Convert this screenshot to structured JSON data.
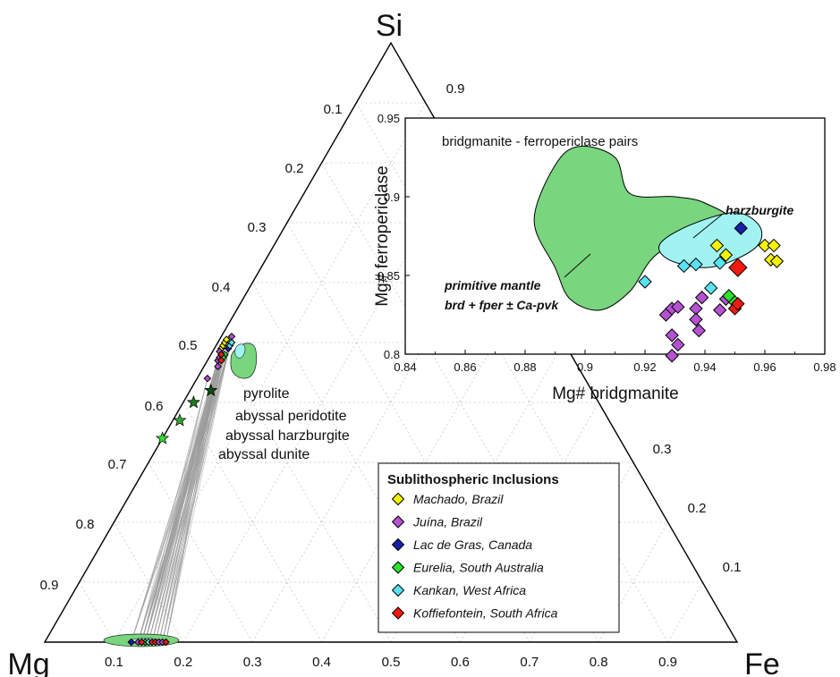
{
  "chart_data": [
    {
      "type": "scatter",
      "subtype": "ternary",
      "vertices": {
        "top": "Si",
        "left": "Mg",
        "right": "Fe"
      },
      "ticks": {
        "base": [
          "0.1",
          "0.2",
          "0.3",
          "0.4",
          "0.5",
          "0.6",
          "0.7",
          "0.8",
          "0.9"
        ],
        "left_edge": [
          "0.1",
          "0.2",
          "0.3",
          "0.4",
          "0.5",
          "0.6",
          "0.7",
          "0.8",
          "0.9"
        ],
        "right_edge": [
          "0.9",
          "0.3",
          "0.2",
          "0.1"
        ]
      },
      "grid": true,
      "references": [
        {
          "name": "pyrolite",
          "mg": 0.55,
          "si": 0.42,
          "color": "#0b4d14"
        },
        {
          "name": "abyssal peridotite",
          "mg": 0.585,
          "si": 0.4,
          "color": "#1f7a22"
        },
        {
          "name": "abyssal harzburgite",
          "mg": 0.62,
          "si": 0.37,
          "color": "#35a530"
        },
        {
          "name": "abyssal dunite",
          "mg": 0.66,
          "si": 0.34,
          "color": "#33dd2c"
        }
      ],
      "bridgmanite_points": [
        {
          "group": 0,
          "mg": 0.5,
          "si": 0.49
        },
        {
          "group": 0,
          "mg": 0.495,
          "si": 0.495
        },
        {
          "group": 0,
          "mg": 0.49,
          "si": 0.5
        },
        {
          "group": 0,
          "mg": 0.485,
          "si": 0.505
        },
        {
          "group": 1,
          "mg": 0.515,
          "si": 0.47
        },
        {
          "group": 1,
          "mg": 0.51,
          "si": 0.475
        },
        {
          "group": 1,
          "mg": 0.505,
          "si": 0.485
        },
        {
          "group": 1,
          "mg": 0.475,
          "si": 0.51
        },
        {
          "group": 1,
          "mg": 0.52,
          "si": 0.46
        },
        {
          "group": 1,
          "mg": 0.545,
          "si": 0.44
        },
        {
          "group": 2,
          "mg": 0.49,
          "si": 0.49
        },
        {
          "group": 3,
          "mg": 0.5,
          "si": 0.48
        },
        {
          "group": 3,
          "mg": 0.505,
          "si": 0.475
        },
        {
          "group": 4,
          "mg": 0.485,
          "si": 0.495
        },
        {
          "group": 4,
          "mg": 0.48,
          "si": 0.5
        },
        {
          "group": 5,
          "mg": 0.505,
          "si": 0.48
        },
        {
          "group": 5,
          "mg": 0.51,
          "si": 0.47
        }
      ],
      "ferropericlase_points": [
        {
          "group": 2,
          "mg": 0.875,
          "si": 0
        },
        {
          "group": 1,
          "mg": 0.865,
          "si": 0
        },
        {
          "group": 1,
          "mg": 0.855,
          "si": 0
        },
        {
          "group": 0,
          "mg": 0.86,
          "si": 0
        },
        {
          "group": 3,
          "mg": 0.855,
          "si": 0
        },
        {
          "group": 4,
          "mg": 0.85,
          "si": 0
        },
        {
          "group": 5,
          "mg": 0.86,
          "si": 0
        },
        {
          "group": 5,
          "mg": 0.845,
          "si": 0
        },
        {
          "group": 5,
          "mg": 0.84,
          "si": 0
        },
        {
          "group": 1,
          "mg": 0.835,
          "si": 0
        },
        {
          "group": 1,
          "mg": 0.83,
          "si": 0
        },
        {
          "group": 5,
          "mg": 0.825,
          "si": 0
        }
      ]
    },
    {
      "type": "scatter",
      "title": "bridgmanite - ferropericlase pairs",
      "xlabel": "Mg# bridgmanite",
      "ylabel": "Mg# ferropericlase",
      "xlim": [
        0.84,
        0.98
      ],
      "ylim": [
        0.8,
        0.95
      ],
      "xticks": [
        "0.84",
        "0.86",
        "0.88",
        "0.9",
        "0.92",
        "0.94",
        "0.96",
        "0.98"
      ],
      "yticks": [
        "0.8",
        "0.85",
        "0.9",
        "0.95"
      ],
      "fields": [
        {
          "label_lines": [
            "primitive mantle",
            "brd + fper ± Ca-pvk"
          ],
          "color": "#79d57e",
          "outline": [
            [
              0.898,
              0.932
            ],
            [
              0.91,
              0.925
            ],
            [
              0.915,
              0.902
            ],
            [
              0.93,
              0.9
            ],
            [
              0.94,
              0.896
            ],
            [
              0.948,
              0.883
            ],
            [
              0.925,
              0.865
            ],
            [
              0.915,
              0.84
            ],
            [
              0.905,
              0.828
            ],
            [
              0.895,
              0.835
            ],
            [
              0.89,
              0.855
            ],
            [
              0.883,
              0.885
            ],
            [
              0.89,
              0.92
            ]
          ]
        },
        {
          "label_lines": [
            "harzburgite"
          ],
          "color": "#a1f3f2",
          "outline": [
            [
              0.935,
              0.882
            ],
            [
              0.95,
              0.89
            ],
            [
              0.958,
              0.882
            ],
            [
              0.958,
              0.87
            ],
            [
              0.95,
              0.86
            ],
            [
              0.94,
              0.855
            ],
            [
              0.928,
              0.86
            ],
            [
              0.925,
              0.87
            ]
          ]
        }
      ],
      "series": [
        {
          "name": "Machado, Brazil",
          "color": "#f2f20a",
          "points": [
            [
              0.944,
              0.869
            ],
            [
              0.947,
              0.863
            ],
            [
              0.96,
              0.869
            ],
            [
              0.962,
              0.86
            ],
            [
              0.963,
              0.869
            ],
            [
              0.964,
              0.859
            ]
          ]
        },
        {
          "name": "Juína, Brazil",
          "color": "#b552d2",
          "points": [
            [
              0.927,
              0.825
            ],
            [
              0.929,
              0.829
            ],
            [
              0.931,
              0.83
            ],
            [
              0.929,
              0.812
            ],
            [
              0.931,
              0.806
            ],
            [
              0.929,
              0.799
            ],
            [
              0.937,
              0.829
            ],
            [
              0.937,
              0.822
            ],
            [
              0.938,
              0.815
            ],
            [
              0.947,
              0.835
            ],
            [
              0.945,
              0.828
            ],
            [
              0.939,
              0.836
            ]
          ]
        },
        {
          "name": "Lac de Gras, Canada",
          "color": "#1820a8",
          "points": [
            [
              0.952,
              0.88
            ]
          ]
        },
        {
          "name": "Eurelia, South Australia",
          "color": "#2ee02e",
          "points": [
            [
              0.948,
              0.837
            ],
            [
              0.95,
              0.833
            ]
          ]
        },
        {
          "name": "Kankan, West Africa",
          "color": "#59e2f2",
          "points": [
            [
              0.92,
              0.846
            ],
            [
              0.933,
              0.856
            ],
            [
              0.937,
              0.857
            ],
            [
              0.942,
              0.842
            ],
            [
              0.945,
              0.858
            ]
          ]
        },
        {
          "name": "Koffiefontein, South Africa",
          "color": "#f01a10",
          "points": [
            [
              0.95,
              0.829
            ],
            [
              0.951,
              0.855
            ],
            [
              0.951,
              0.832
            ]
          ]
        }
      ],
      "legend_title": "Sublithospheric Inclusions",
      "legend_placement": "bottom-right"
    }
  ]
}
